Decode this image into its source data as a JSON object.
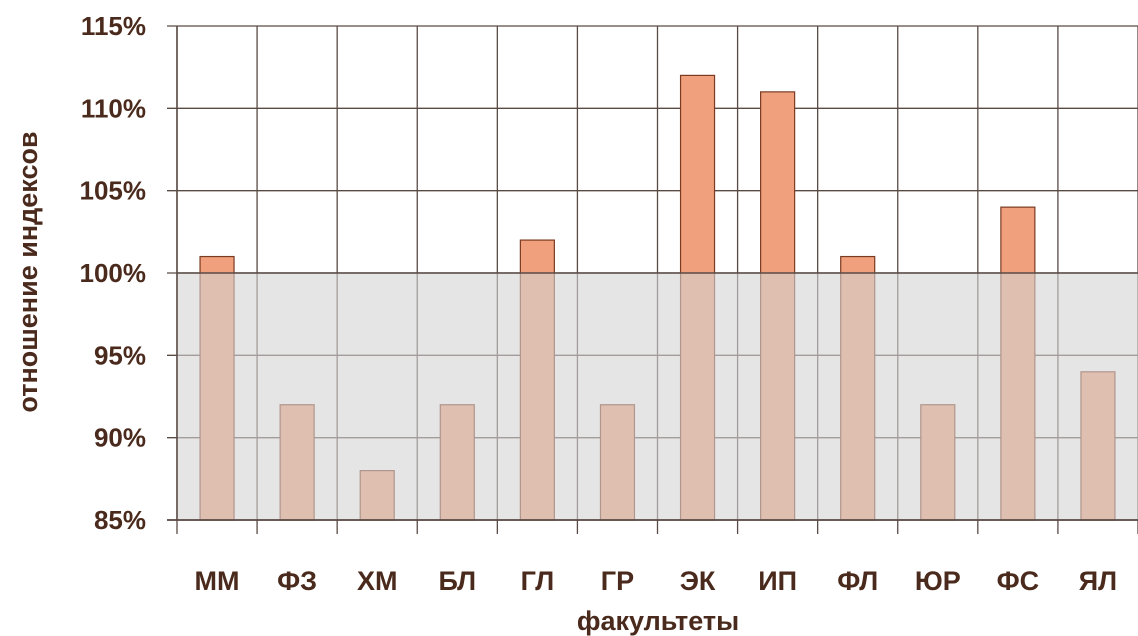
{
  "chart_data": {
    "type": "bar",
    "title": "",
    "xlabel": "факультеты",
    "ylabel": "отношение индексов",
    "categories": [
      "ММ",
      "ФЗ",
      "ХМ",
      "БЛ",
      "ГЛ",
      "ГР",
      "ЭК",
      "ИП",
      "ФЛ",
      "ЮР",
      "ФС",
      "ЯЛ"
    ],
    "values": [
      101,
      92,
      88,
      92,
      102,
      92,
      112,
      111,
      101,
      92,
      104,
      94
    ],
    "value_unit": "%",
    "ylim": [
      85,
      115
    ],
    "yticks": [
      85,
      90,
      95,
      100,
      105,
      110,
      115
    ],
    "ytick_labels": [
      "85%",
      "90%",
      "95%",
      "100%",
      "105%",
      "110%",
      "115%"
    ],
    "reference_line": 100,
    "shaded_band": [
      85,
      100
    ],
    "grid": true,
    "legend": "none"
  },
  "colors": {
    "bar_fill": "#f0a07c",
    "bar_stroke": "#7a3b22",
    "band_fill": "#d4d4d4",
    "band_opacity": 0.6,
    "grid": "#5a4a44",
    "text": "#4a2a1c"
  }
}
